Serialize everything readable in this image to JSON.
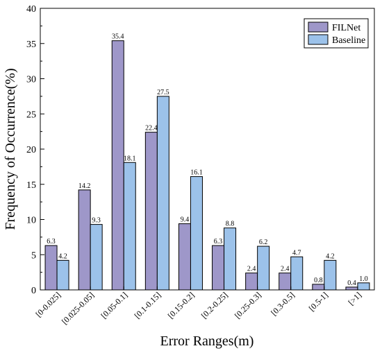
{
  "chart_data": {
    "type": "bar",
    "xlabel": "Error Ranges(m)",
    "ylabel": "Frequency of Occurrence(%)",
    "ylim": [
      0,
      40
    ],
    "yticks": [
      0,
      5,
      10,
      15,
      20,
      25,
      30,
      35,
      40
    ],
    "categories": [
      "[0-0.025]",
      "[0.025-0.05]",
      "[0.05-0.1]",
      "[0.1-0.15]",
      "[0.15-0.2]",
      "[0.2-0.25]",
      "[0.25-0.3]",
      "[0.3-0.5]",
      "[0.5-1]",
      "[>1]"
    ],
    "series": [
      {
        "name": "FILNet",
        "color": "#9e97c9",
        "values": [
          6.3,
          14.2,
          35.4,
          22.4,
          9.4,
          6.3,
          2.4,
          2.4,
          0.8,
          0.4
        ]
      },
      {
        "name": "Baseline",
        "color": "#9cc2ea",
        "values": [
          4.2,
          9.3,
          18.1,
          27.5,
          16.1,
          8.8,
          6.2,
          4.7,
          4.2,
          1.0
        ]
      }
    ],
    "data_labels": [
      [
        "6.3",
        "14.2",
        "35.4",
        "22.4",
        "9.4",
        "6.3",
        "2.4",
        "2.4",
        "0.8",
        "0.4"
      ],
      [
        "4.2",
        "9.3",
        "18.1",
        "27.5",
        "16.1",
        "8.8",
        "6.2",
        "4.7",
        "4.2",
        "1.0"
      ]
    ],
    "legend_position": "top-right",
    "grid": false
  }
}
